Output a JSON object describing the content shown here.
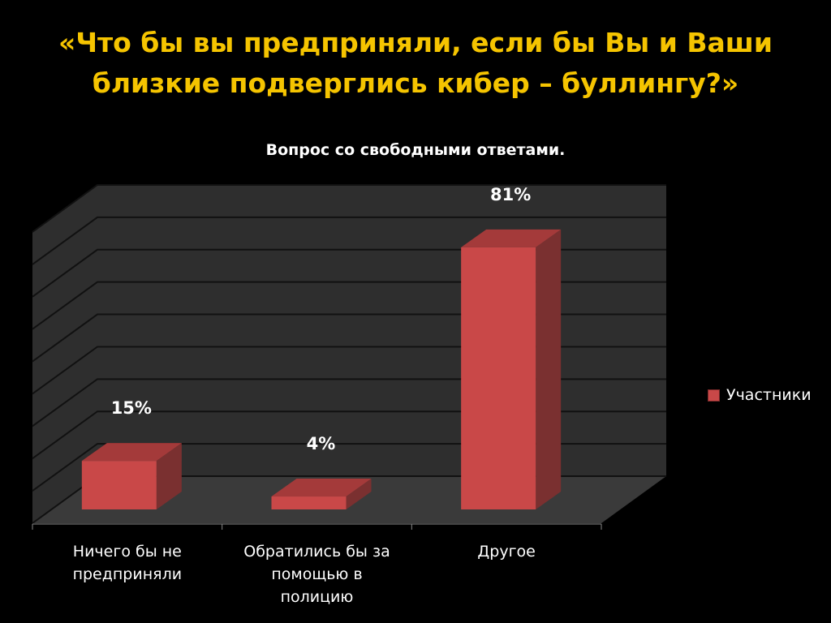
{
  "slide": {
    "title_line1": "«Что бы вы предприняли, если бы Вы и Ваши",
    "title_line2": "близкие подверглись кибер – буллингу?»"
  },
  "chart_data": {
    "type": "bar",
    "title": "Вопрос со свободными ответами.",
    "categories": [
      "Ничего бы не предприняли",
      "Обратились бы за помощью в полицию",
      "Другое"
    ],
    "category_lines": [
      [
        "Ничего бы не",
        "предприняли"
      ],
      [
        "Обратились бы за",
        "помощью в",
        "полицию"
      ],
      [
        "Другое"
      ]
    ],
    "series": [
      {
        "name": "Участники",
        "values": [
          15,
          4,
          81
        ],
        "labels": [
          "15%",
          "4%",
          "81%"
        ]
      }
    ],
    "ylim": [
      0,
      90
    ],
    "grid": true,
    "legend_position": "right",
    "three_d": true,
    "colors": {
      "bar_front": "#c94848",
      "bar_side": "#7a3030",
      "bar_top": "#a43a3a",
      "wall": "#2e2e2e",
      "floor": "#3a3a3a",
      "grid": "#111111",
      "title": "#f5c400",
      "text": "#ffffff"
    }
  }
}
